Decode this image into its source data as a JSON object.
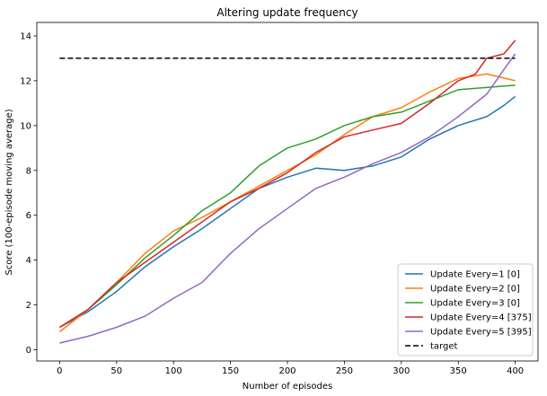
{
  "chart_data": {
    "type": "line",
    "title": "Altering update frequency",
    "xlabel": "Number of episodes",
    "ylabel": "Score (100-episode moving average)",
    "xlim": [
      -20,
      420
    ],
    "ylim": [
      -0.5,
      14.6
    ],
    "xticks": [
      0,
      50,
      100,
      150,
      200,
      250,
      300,
      350,
      400
    ],
    "yticks": [
      0,
      2,
      4,
      6,
      8,
      10,
      12,
      14
    ],
    "grid": false,
    "legend_position": "lower right",
    "series": [
      {
        "name": "Update Every=1 [0]",
        "color": "#1f77b4",
        "style": "solid",
        "x": [
          0,
          25,
          50,
          75,
          100,
          125,
          150,
          175,
          200,
          225,
          250,
          275,
          300,
          325,
          350,
          375,
          390,
          400
        ],
        "y": [
          1.0,
          1.7,
          2.6,
          3.7,
          4.6,
          5.4,
          6.3,
          7.2,
          7.7,
          8.1,
          8.0,
          8.2,
          8.6,
          9.4,
          10.0,
          10.4,
          10.9,
          11.3
        ]
      },
      {
        "name": "Update Every=2 [0]",
        "color": "#ff7f0e",
        "style": "solid",
        "x": [
          0,
          25,
          50,
          75,
          100,
          125,
          150,
          175,
          200,
          225,
          250,
          275,
          300,
          325,
          350,
          375,
          400
        ],
        "y": [
          0.8,
          1.8,
          3.0,
          4.3,
          5.3,
          5.9,
          6.6,
          7.3,
          8.0,
          8.7,
          9.6,
          10.4,
          10.8,
          11.5,
          12.1,
          12.3,
          12.0
        ]
      },
      {
        "name": "Update Every=3 [0]",
        "color": "#2ca02c",
        "style": "solid",
        "x": [
          0,
          25,
          50,
          75,
          100,
          125,
          150,
          175,
          200,
          225,
          250,
          275,
          300,
          325,
          350,
          375,
          400
        ],
        "y": [
          1.0,
          1.8,
          2.9,
          4.1,
          5.1,
          6.2,
          7.0,
          8.2,
          9.0,
          9.4,
          10.0,
          10.4,
          10.6,
          11.1,
          11.6,
          11.7,
          11.8
        ]
      },
      {
        "name": "Update Every=4 [375]",
        "color": "#d62728",
        "style": "solid",
        "x": [
          0,
          25,
          50,
          75,
          100,
          125,
          150,
          175,
          200,
          225,
          250,
          275,
          300,
          325,
          350,
          365,
          375,
          390,
          400
        ],
        "y": [
          1.0,
          1.8,
          3.0,
          3.9,
          4.8,
          5.7,
          6.6,
          7.2,
          7.9,
          8.8,
          9.5,
          9.8,
          10.1,
          11.0,
          12.0,
          12.3,
          13.0,
          13.2,
          13.8
        ]
      },
      {
        "name": "Update Every=5 [395]",
        "color": "#9467bd",
        "style": "solid",
        "x": [
          0,
          25,
          50,
          75,
          100,
          125,
          150,
          175,
          200,
          225,
          250,
          275,
          300,
          325,
          350,
          375,
          390,
          400
        ],
        "y": [
          0.3,
          0.6,
          1.0,
          1.5,
          2.3,
          3.0,
          4.3,
          5.4,
          6.3,
          7.2,
          7.7,
          8.3,
          8.8,
          9.5,
          10.4,
          11.4,
          12.5,
          13.2
        ]
      },
      {
        "name": "target",
        "color": "#000000",
        "style": "dashed",
        "x": [
          0,
          400
        ],
        "y": [
          13,
          13
        ]
      }
    ]
  }
}
